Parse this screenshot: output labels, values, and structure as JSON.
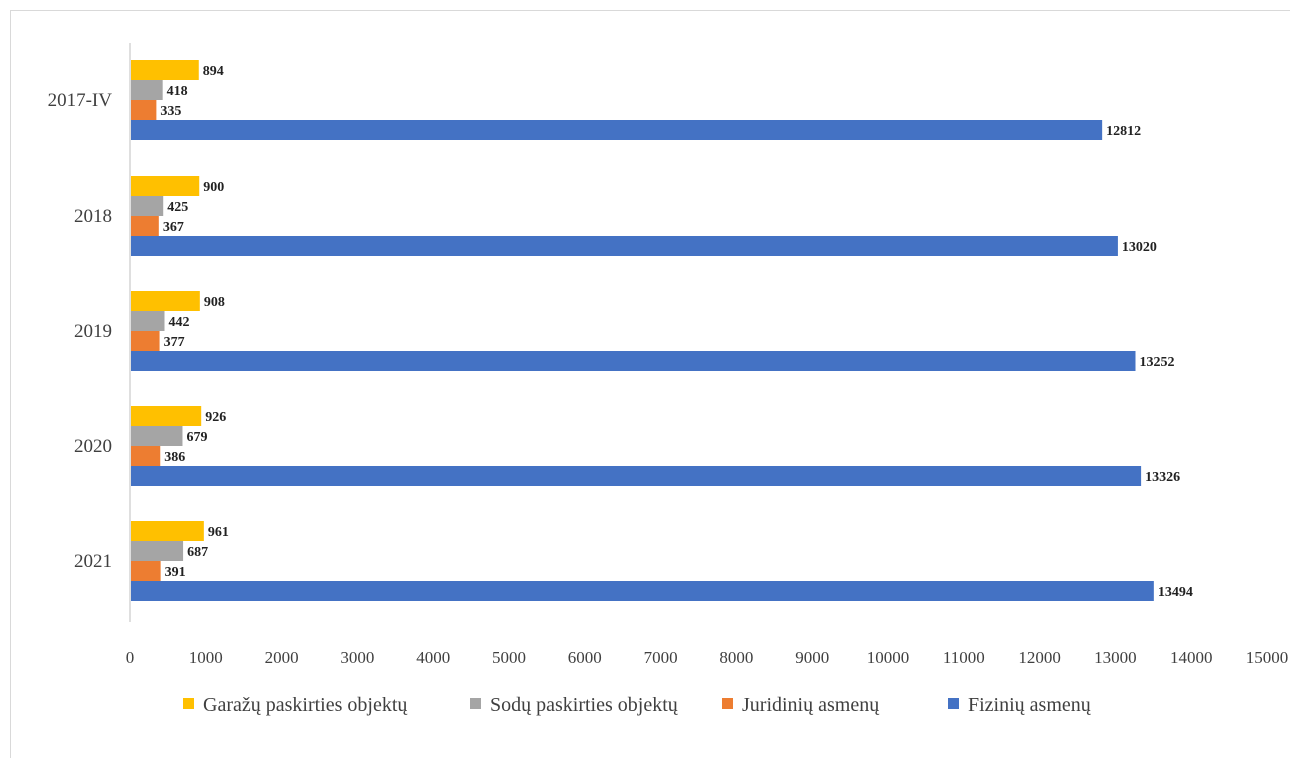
{
  "chart_data": {
    "type": "bar",
    "orientation": "horizontal",
    "categories": [
      "2017-IV",
      "2018",
      "2019",
      "2020",
      "2021"
    ],
    "series": [
      {
        "name": "Garažų paskirties objektų",
        "color": "#FFC000",
        "values": [
          894,
          900,
          908,
          926,
          961
        ]
      },
      {
        "name": "Sodų paskirties objektų",
        "color": "#A5A5A5",
        "values": [
          418,
          425,
          442,
          679,
          687
        ]
      },
      {
        "name": "Juridinių asmenų",
        "color": "#ED7D31",
        "values": [
          335,
          367,
          377,
          386,
          391
        ]
      },
      {
        "name": "Fizinių asmenų",
        "color": "#4472C4",
        "values": [
          12812,
          13020,
          13252,
          13326,
          13494
        ]
      }
    ],
    "xlim": [
      0,
      15000
    ],
    "x_ticks": [
      0,
      1000,
      2000,
      3000,
      4000,
      5000,
      6000,
      7000,
      8000,
      9000,
      10000,
      11000,
      12000,
      13000,
      14000,
      15000
    ],
    "grid": false,
    "legend_position": "bottom",
    "data_labels": true
  }
}
